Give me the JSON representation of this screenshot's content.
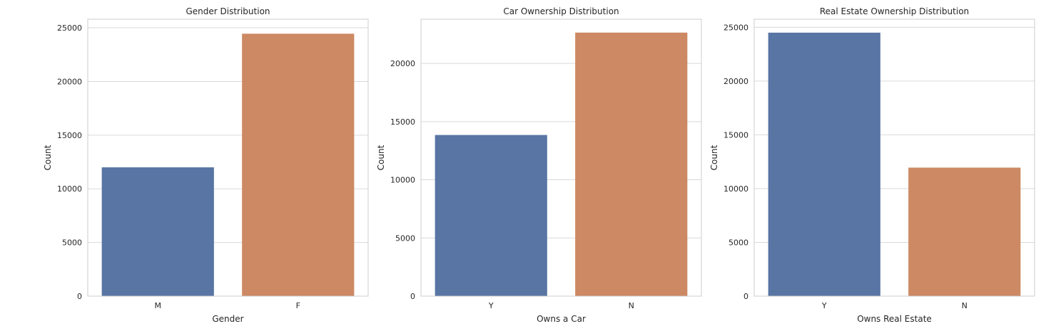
{
  "chart_data": [
    {
      "type": "bar",
      "title": "Gender Distribution",
      "xlabel": "Gender",
      "ylabel": "Count",
      "categories": [
        "M",
        "F"
      ],
      "values": [
        12000,
        24450
      ],
      "ylim": [
        0,
        25800
      ],
      "yticks": [
        0,
        5000,
        10000,
        15000,
        20000,
        25000
      ],
      "colors": [
        "#5875a4",
        "#cc8963"
      ],
      "grid": true
    },
    {
      "type": "bar",
      "title": "Car Ownership Distribution",
      "xlabel": "Owns a Car",
      "ylabel": "Count",
      "categories": [
        "Y",
        "N"
      ],
      "values": [
        13850,
        22650
      ],
      "ylim": [
        0,
        23800
      ],
      "yticks": [
        0,
        5000,
        10000,
        15000,
        20000
      ],
      "colors": [
        "#5875a4",
        "#cc8963"
      ],
      "grid": true
    },
    {
      "type": "bar",
      "title": "Real Estate Ownership Distribution",
      "xlabel": "Owns Real Estate",
      "ylabel": "Count",
      "categories": [
        "Y",
        "N"
      ],
      "values": [
        24500,
        11950
      ],
      "ylim": [
        0,
        25750
      ],
      "yticks": [
        0,
        5000,
        10000,
        15000,
        20000,
        25000
      ],
      "colors": [
        "#5875a4",
        "#cc8963"
      ],
      "grid": true
    }
  ]
}
